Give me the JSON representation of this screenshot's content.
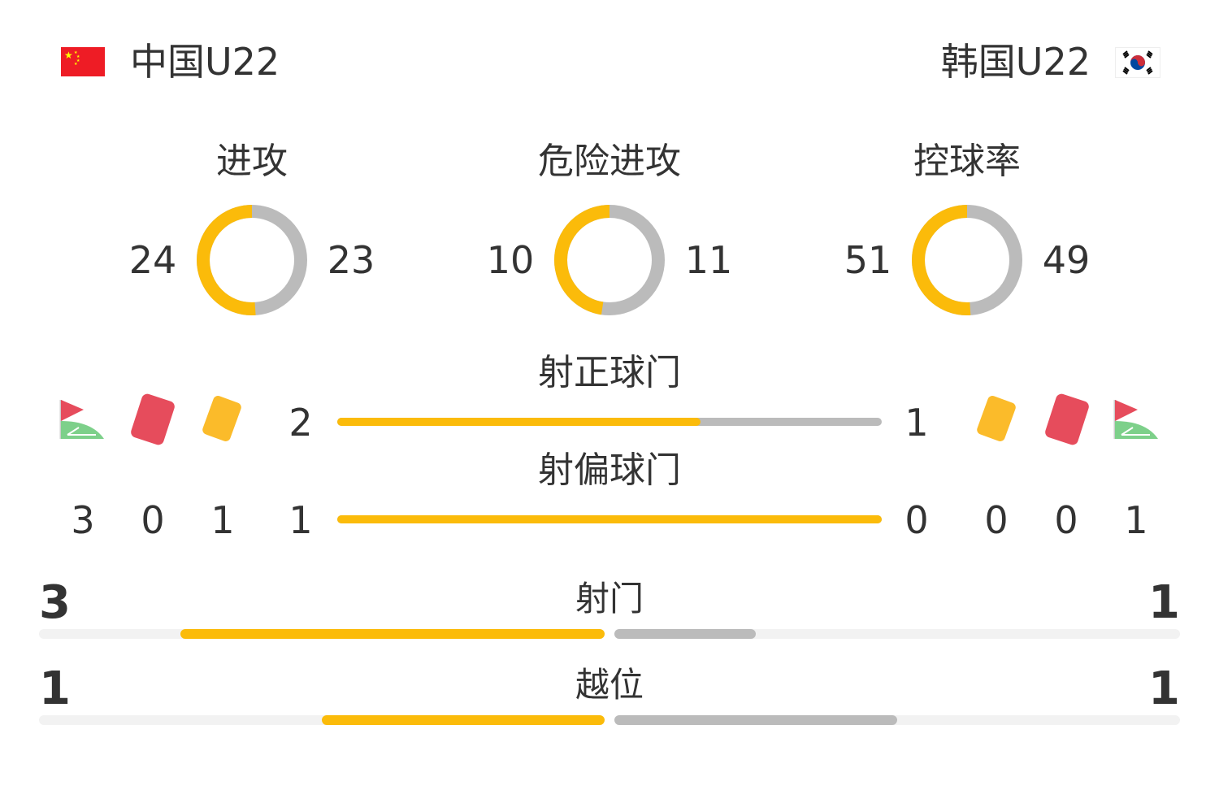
{
  "home": {
    "name": "中国U22",
    "flag": "china-flag-icon"
  },
  "away": {
    "name": "韩国U22",
    "flag": "korea-flag-icon"
  },
  "donuts": [
    {
      "label": "进攻",
      "home": 24,
      "away": 23
    },
    {
      "label": "危险进攻",
      "home": 10,
      "away": 11
    },
    {
      "label": "控球率",
      "home": 51,
      "away": 49
    }
  ],
  "on_target": {
    "label": "射正球门",
    "home": 2,
    "away": 1
  },
  "off_target": {
    "label": "射偏球门",
    "home": 1,
    "away": 0
  },
  "home_counts": {
    "corners": 3,
    "red_cards": 0,
    "yellow_cards": 1
  },
  "away_counts": {
    "yellow_cards": 0,
    "red_cards": 0,
    "corners": 1
  },
  "shots": {
    "label": "射门",
    "home": 3,
    "away": 1
  },
  "offside": {
    "label": "越位",
    "home": 1,
    "away": 1
  },
  "colors": {
    "home": "#fbbb0a",
    "away": "#bbbbbb",
    "red_card": "#e64c5c",
    "yellow_card": "#fbbb2a",
    "corner_flag": "#e64c5c",
    "corner_field": "#7dd08a"
  }
}
